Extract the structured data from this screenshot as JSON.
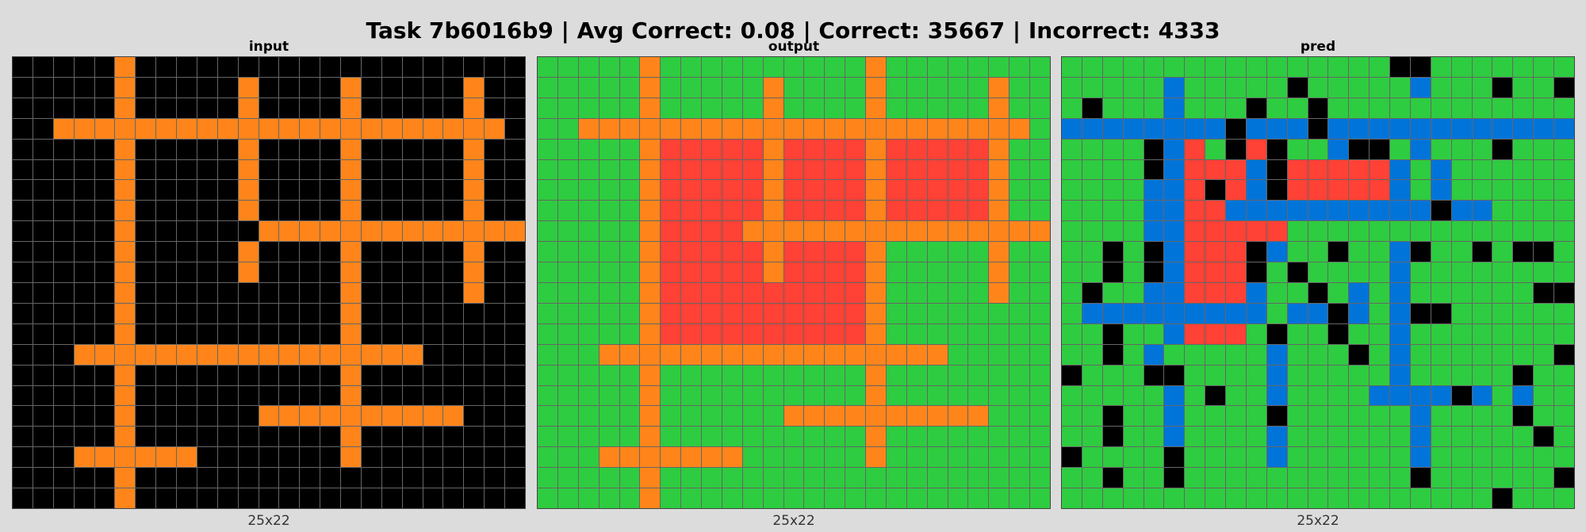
{
  "title": "Task 7b6016b9 | Avg Correct: 0.08 | Correct: 35667 | Incorrect: 4333",
  "palette": {
    "0": "#000000",
    "1": "#0074d9",
    "2": "#ff4136",
    "3": "#2ecc40",
    "4": "#ffdc00",
    "8": "#ff851b"
  },
  "panels": [
    {
      "label": "input",
      "size": "25x22",
      "rows": [
        "0000080000000000000000000",
        "0000080000080000800000800",
        "0000080000080000800000800",
        "0088888888888888888888880",
        "0000080000080000800000800",
        "0000080000080000800000800",
        "0000080000080000800000800",
        "0000080000080000800000800",
        "0000080000008888888888888",
        "0000080000080000800000800",
        "0000080000080000800000800",
        "0000080000000000800000800",
        "0000080000000000800000000",
        "0000080000000000800000000",
        "0008888888888888888800000",
        "0000080000000000800000000",
        "0000080000000000800000000",
        "0000080000008888888888000",
        "0000080000000000800000000",
        "0008888880000000800000000",
        "0000080000000000000000000",
        "0000080000000000000000000"
      ]
    },
    {
      "label": "output",
      "size": "25x22",
      "rows": [
        "3333383333333333833333333",
        "3333383333383333833333833",
        "3333383333383333833333833",
        "3388888888888888888888883",
        "3333382222282222822222833",
        "3333382222282222822222833",
        "3333382222282222822222833",
        "3333382222282222822222833",
        "3333382222888888888888888",
        "3333382222282222833333833",
        "3333382222282222833333833",
        "3333382222222222833333833",
        "3333382222222222833333333",
        "3333382222222222833333333",
        "3338888888888888888833333",
        "3333383333333333833333333",
        "3333383333333333833333333",
        "3333383333338888888888333",
        "3333383333333333833333333",
        "3338888888333333833333333",
        "3333383333333333333333333",
        "3333383333333333333333333"
      ]
    },
    {
      "label": "pred",
      "size": "25x22",
      "rows": [
        "3333333333333333003333333",
        "3333313333303333313330330",
        "3033313330330333333333333",
        "1111111101110111111111111",
        "3333012302033100313330333",
        "3333012221022222131333333",
        "3333112021022222131333333",
        "3333112211111111110113333",
        "3333112222233333333333333",
        "3303012220133033103303003",
        "3303012220303333133333333",
        "3033112221330313133333300",
        "3111111111311013100333333",
        "3303312223033033133333333",
        "3303133333133303133333330",
        "0333003333133333133333033",
        "3333313033133331111013133",
        "3303313333033333313333033",
        "3303313333133333313333303",
        "0333303333133333313333333",
        "3303303333333333303333330",
        "3333333333333333333330333"
      ]
    }
  ]
}
